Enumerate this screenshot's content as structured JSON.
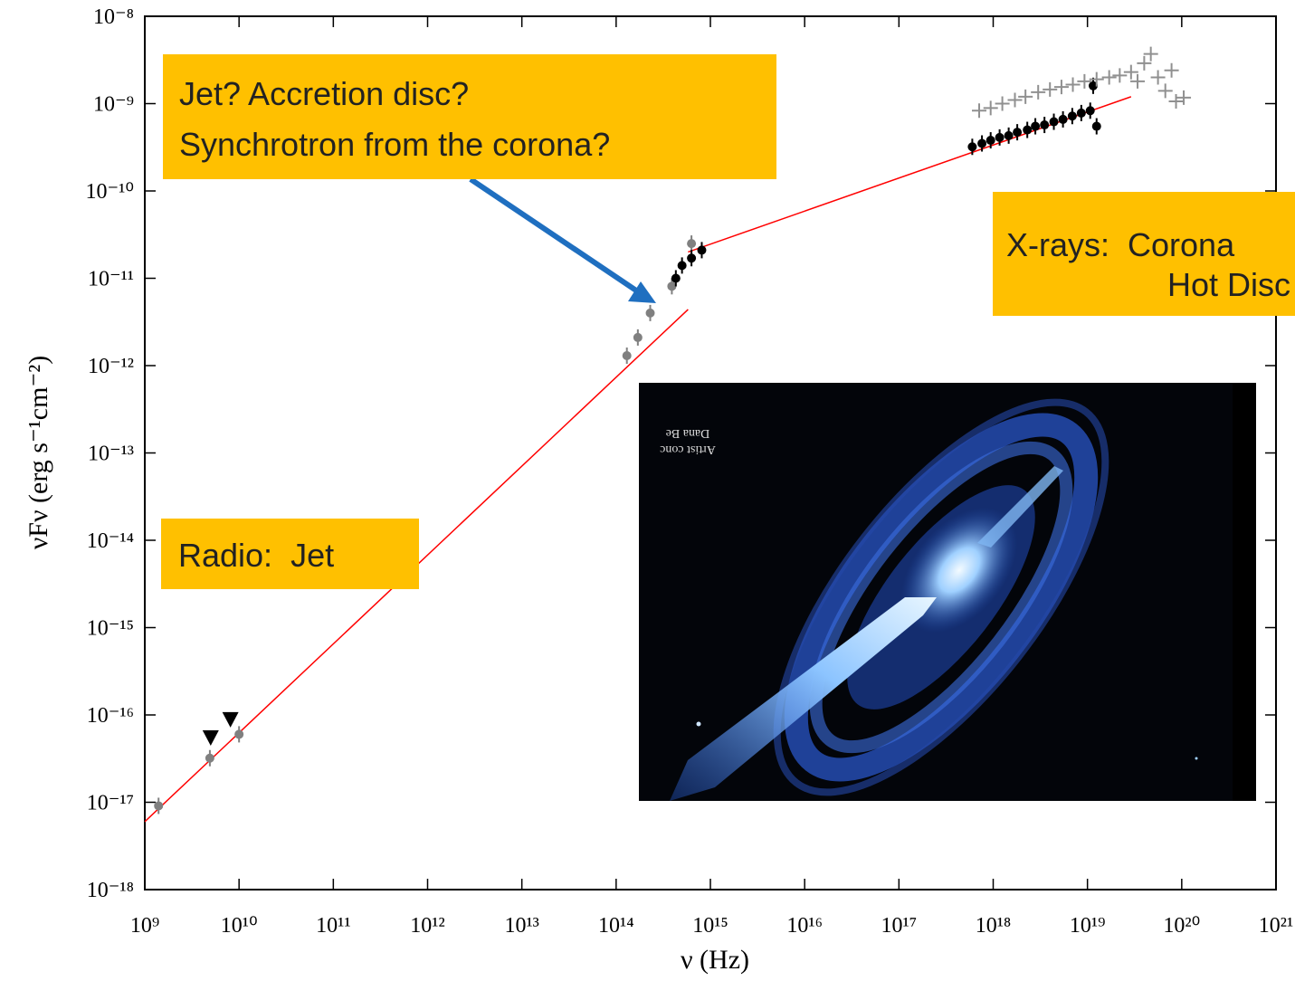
{
  "chart_data": {
    "type": "scatter",
    "xlabel": "ν (Hz)",
    "ylabel": "νFν (erg s⁻¹cm⁻²)",
    "log_x": true,
    "log_y": true,
    "xlim": [
      1000000000.0,
      1e+21
    ],
    "ylim": [
      1e-18,
      1e-08
    ],
    "xticks": [
      {
        "value": 1000000000.0,
        "label": "10⁹"
      },
      {
        "value": 10000000000.0,
        "label": "10¹⁰"
      },
      {
        "value": 100000000000.0,
        "label": "10¹¹"
      },
      {
        "value": 1000000000000.0,
        "label": "10¹²"
      },
      {
        "value": 10000000000000.0,
        "label": "10¹³"
      },
      {
        "value": 100000000000000.0,
        "label": "10¹⁴"
      },
      {
        "value": 1000000000000000.0,
        "label": "10¹⁵"
      },
      {
        "value": 1e+16,
        "label": "10¹⁶"
      },
      {
        "value": 1e+17,
        "label": "10¹⁷"
      },
      {
        "value": 1e+18,
        "label": "10¹⁸"
      },
      {
        "value": 1e+19,
        "label": "10¹⁹"
      },
      {
        "value": 1e+20,
        "label": "10²⁰"
      },
      {
        "value": 1e+21,
        "label": "10²¹"
      }
    ],
    "yticks": [
      {
        "value": 1e-18,
        "label": "10⁻¹⁸"
      },
      {
        "value": 1e-17,
        "label": "10⁻¹⁷"
      },
      {
        "value": 1e-16,
        "label": "10⁻¹⁶"
      },
      {
        "value": 1e-15,
        "label": "10⁻¹⁵"
      },
      {
        "value": 1e-14,
        "label": "10⁻¹⁴"
      },
      {
        "value": 1e-13,
        "label": "10⁻¹³"
      },
      {
        "value": 1e-12,
        "label": "10⁻¹²"
      },
      {
        "value": 1e-11,
        "label": "10⁻¹¹"
      },
      {
        "value": 1e-10,
        "label": "10⁻¹⁰"
      },
      {
        "value": 1e-09,
        "label": "10⁻⁹"
      },
      {
        "value": 1e-08,
        "label": "10⁻⁸"
      }
    ],
    "series": [
      {
        "color": "#808080",
        "marker": "circle",
        "x": [
          1400000000.0,
          4900000000.0,
          10000000000.0,
          130000000000000.0,
          170000000000000.0,
          230000000000000.0,
          390000000000000.0,
          630000000000000.0
        ],
        "values": [
          9.1e-18,
          3.2e-17,
          6e-17,
          1.3e-12,
          2.1e-12,
          4e-12,
          8.1e-12,
          2.5e-11
        ]
      },
      {
        "color": "#000000",
        "marker": "circle",
        "x": [
          430000000000000.0,
          500000000000000.0,
          630000000000000.0,
          810000000000000.0,
          6e+17,
          7.6e+17,
          9.4e+17,
          1.17e+18,
          1.46e+18,
          1.8e+18,
          2.3e+18,
          2.8e+18,
          3.5e+18,
          4.4e+18,
          5.5e+18,
          6.9e+18,
          8.6e+18,
          1.07e+19,
          1.15e+19,
          1.25e+19
        ],
        "values": [
          1e-11,
          1.4e-11,
          1.7e-11,
          2.1e-11,
          3.2e-10,
          3.5e-10,
          3.8e-10,
          4.1e-10,
          4.3e-10,
          4.7e-10,
          5e-10,
          5.5e-10,
          5.7e-10,
          6.2e-10,
          6.6e-10,
          7.2e-10,
          7.8e-10,
          8.3e-10,
          1.6e-09,
          5.5e-10
        ]
      },
      {
        "color": "#000000",
        "marker": "triangle",
        "x": [
          5000000000.0,
          8100000000.0
        ],
        "values": [
          5.5e-17,
          8.9e-17
        ]
      },
      {
        "color": "#909090",
        "marker": "cross",
        "x": [
          7.1e+17,
          9.4e+17,
          1.25e+18,
          1.7e+18,
          2.2e+18,
          3e+18,
          4e+18,
          5.3e+18,
          7e+18,
          9.3e+18,
          1.25e+19,
          1.7e+19,
          2.2e+19,
          2.9e+19,
          3.4e+19,
          4e+19,
          4.7e+19,
          5.6e+19,
          6.7e+19,
          7.8e+19,
          8.7e+19,
          1.05e+20
        ],
        "values": [
          8.3e-10,
          8.9e-10,
          1e-09,
          1.1e-09,
          1.2e-09,
          1.35e-09,
          1.45e-09,
          1.55e-09,
          1.65e-09,
          1.8e-09,
          1.9e-09,
          2e-09,
          2.1e-09,
          2.3e-09,
          1.8e-09,
          2.9e-09,
          3.7e-09,
          2e-09,
          1.4e-09,
          2.4e-09,
          1.06e-09,
          1.17e-09
        ]
      }
    ],
    "lines": [
      {
        "color": "#ff0000",
        "x": [
          1000000000.0,
          580000000000000.0
        ],
        "values": [
          6e-18,
          4.4e-12
        ]
      },
      {
        "color": "#ff0000",
        "x": [
          580000000000000.0,
          2.9e+19
        ],
        "values": [
          2e-11,
          1.2e-09
        ]
      }
    ],
    "annotations": [
      {
        "lines": [
          "Jet? Accretion disc?",
          "Synchrotron from the corona?"
        ]
      },
      {
        "lines": [
          "X-rays:  Corona",
          "Hot Disc"
        ]
      },
      {
        "lines": [
          "Radio:  Jet"
        ]
      }
    ],
    "image_credit": [
      "Artist conc",
      "Dana Be"
    ]
  }
}
